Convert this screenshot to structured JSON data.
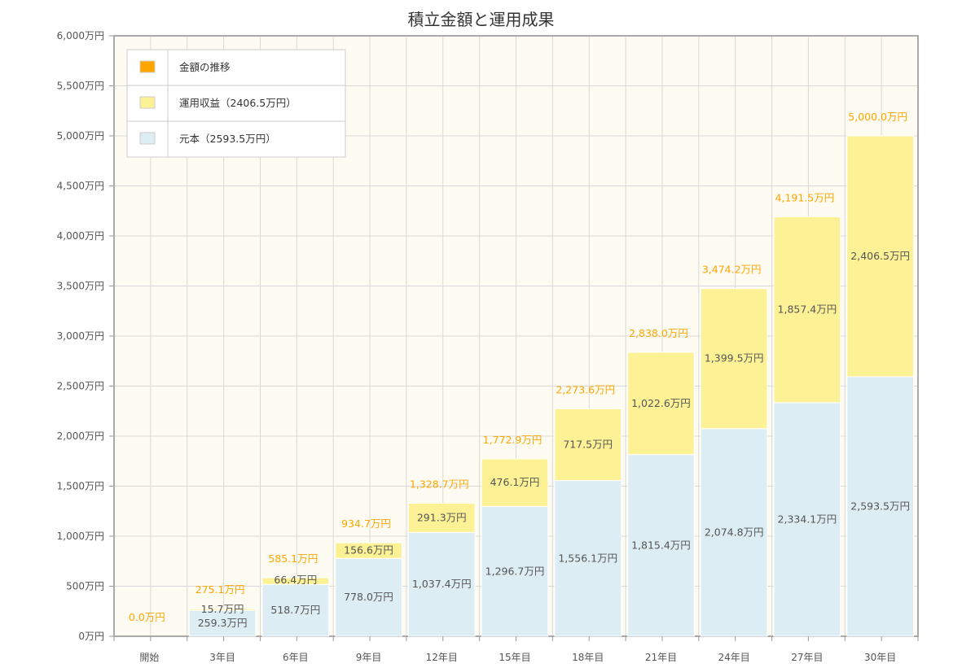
{
  "chart_data": {
    "type": "bar",
    "stacked": true,
    "title": "積立金額と運用成果",
    "categories": [
      "開始",
      "3年目",
      "6年目",
      "9年目",
      "12年目",
      "15年目",
      "18年目",
      "21年目",
      "24年目",
      "27年目",
      "30年目"
    ],
    "y_ticks": [
      "0万円",
      "500万円",
      "1,000万円",
      "1,500万円",
      "2,000万円",
      "2,500万円",
      "3,000万円",
      "3,500万円",
      "4,000万円",
      "4,500万円",
      "5,000万円",
      "5,500万円",
      "6,000万円"
    ],
    "ylim": [
      0,
      6000
    ],
    "grid": true,
    "legend_position": "top-left",
    "legend": [
      {
        "label": "金額の推移",
        "color": "#ffa500"
      },
      {
        "label": "運用収益（2406.5万円）",
        "color": "#fdf196"
      },
      {
        "label": "元本（2593.5万円）",
        "color": "#ddedf4"
      }
    ],
    "series": [
      {
        "name": "元本",
        "color": "#ddedf4",
        "values": [
          0,
          259.3,
          518.7,
          778.0,
          1037.4,
          1296.7,
          1556.1,
          1815.4,
          2074.8,
          2334.1,
          2593.5
        ],
        "labels": [
          "",
          "259.3万円",
          "518.7万円",
          "778.0万円",
          "1,037.4万円",
          "1,296.7万円",
          "1,556.1万円",
          "1,815.4万円",
          "2,074.8万円",
          "2,334.1万円",
          "2,593.5万円"
        ]
      },
      {
        "name": "運用収益",
        "color": "#fdf196",
        "values": [
          0,
          15.7,
          66.4,
          156.6,
          291.3,
          476.1,
          717.5,
          1022.6,
          1399.5,
          1857.4,
          2406.5
        ],
        "labels": [
          "",
          "15.7万円",
          "66.4万円",
          "156.6万円",
          "291.3万円",
          "476.1万円",
          "717.5万円",
          "1,022.6万円",
          "1,399.5万円",
          "1,857.4万円",
          "2,406.5万円"
        ]
      }
    ],
    "totals": [
      0,
      275.1,
      585.1,
      934.7,
      1328.7,
      1772.9,
      2273.6,
      2838.0,
      3474.2,
      4191.5,
      5000.0
    ],
    "total_labels": [
      "0.0万円",
      "275.1万円",
      "585.1万円",
      "934.7万円",
      "1,328.7万円",
      "1,772.9万円",
      "2,273.6万円",
      "2,838.0万円",
      "3,474.2万円",
      "4,191.5万円",
      "5,000.0万円"
    ],
    "colors": {
      "total_label": "#ffa500",
      "plot_background": "#fefcf2",
      "grid": "#d8d8d8",
      "axis": "#999999"
    }
  }
}
